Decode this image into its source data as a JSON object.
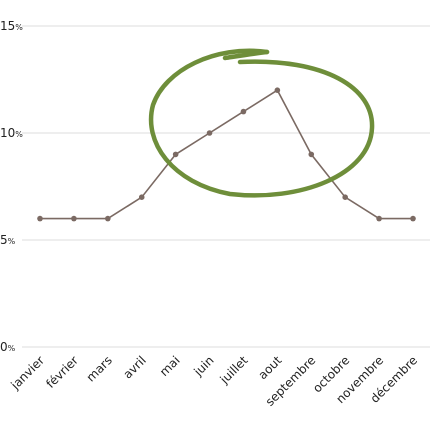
{
  "chart_data": {
    "type": "line",
    "categories": [
      "janvier",
      "février",
      "mars",
      "avril",
      "mai",
      "juin",
      "juillet",
      "aout",
      "septembre",
      "octobre",
      "novembre",
      "décembre"
    ],
    "series": [
      {
        "values": [
          6,
          6,
          6,
          7,
          9,
          10,
          11,
          12,
          9,
          7,
          6,
          6
        ]
      }
    ],
    "y_ticks": [
      {
        "value": 0,
        "label": "0",
        "unit": "%"
      },
      {
        "value": 5,
        "label": "5",
        "unit": "%"
      },
      {
        "value": 10,
        "label": "10",
        "unit": "%"
      },
      {
        "value": 15,
        "label": "15",
        "unit": "%"
      }
    ],
    "ylim": [
      0,
      15
    ],
    "grid": true,
    "colors": {
      "line": "#7b6a63",
      "highlight": "#6e8e3a",
      "grid": "#dddddd"
    }
  }
}
